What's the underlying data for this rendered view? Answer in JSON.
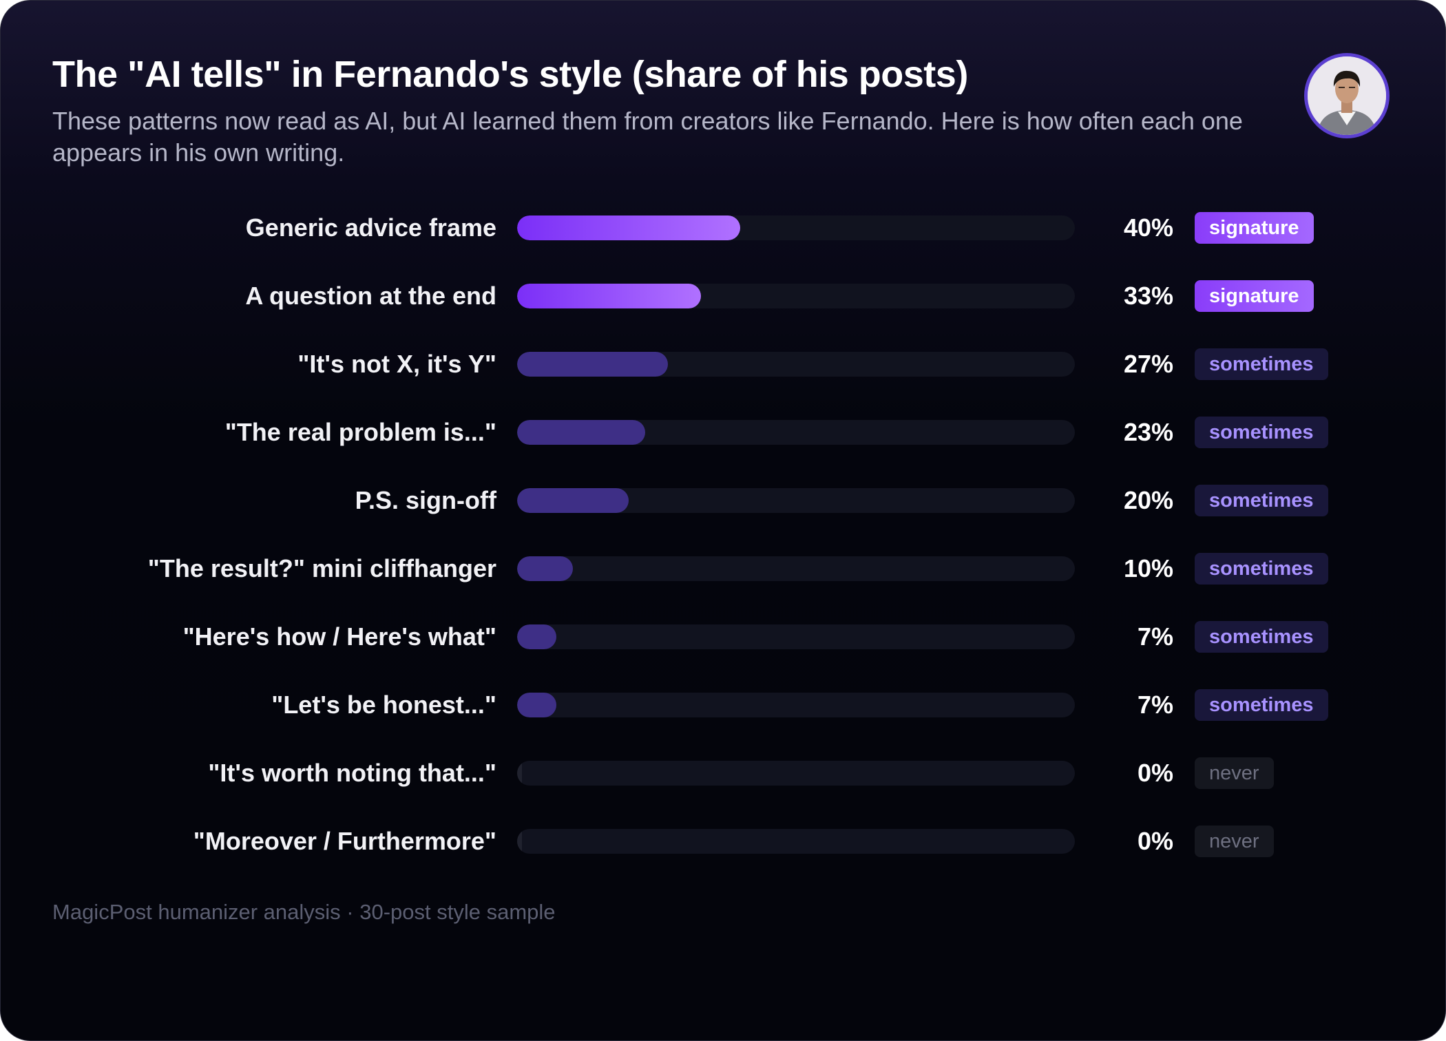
{
  "header": {
    "title": "The \"AI tells\" in Fernando's style (share of his posts)",
    "subtitle": "These patterns now read as AI, but AI learned them from creators like Fernando. Here is how often each one appears in his own writing."
  },
  "avatar": {
    "icon": "person-photo-icon"
  },
  "colors": {
    "signature_bar_start": "#7b2ff7",
    "signature_bar_end": "#b071ff",
    "sometimes_bar": "#3e2f86",
    "never_bar": "#20222e",
    "track": "#11131f",
    "avatar_ring": "#5b3fd0"
  },
  "chart_data": {
    "type": "bar",
    "orientation": "horizontal",
    "title": "The \"AI tells\" in Fernando's style (share of his posts)",
    "xlim": [
      0,
      100
    ],
    "unit": "%",
    "grid": false,
    "legend": "none",
    "categories": [
      "Generic advice frame",
      "A question at the end",
      "\"It's not X, it's Y\"",
      "\"The real problem is...\"",
      "P.S. sign-off",
      "\"The result?\" mini cliffhanger",
      "\"Here's how / Here's what\"",
      "\"Let's be honest...\"",
      "\"It's worth noting that...\"",
      "\"Moreover / Furthermore\""
    ],
    "values": [
      40,
      33,
      27,
      23,
      20,
      10,
      7,
      7,
      0,
      0
    ],
    "value_labels": [
      "40%",
      "33%",
      "27%",
      "23%",
      "20%",
      "10%",
      "7%",
      "7%",
      "0%",
      "0%"
    ],
    "tags": [
      "signature",
      "signature",
      "sometimes",
      "sometimes",
      "sometimes",
      "sometimes",
      "sometimes",
      "sometimes",
      "never",
      "never"
    ]
  },
  "footer": {
    "text": "MagicPost humanizer analysis · 30-post style sample"
  }
}
